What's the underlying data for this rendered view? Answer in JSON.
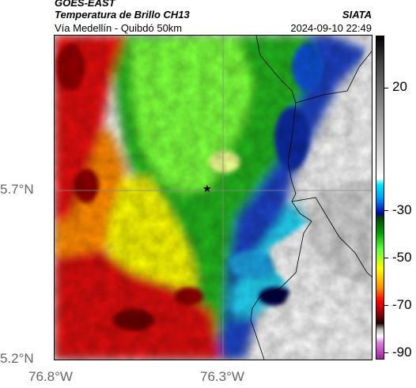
{
  "header": {
    "satellite": "GOES-EAST",
    "product": "Temperatura de Brillo CH13",
    "organization": "SIATA",
    "region": "Vía Medellín - Quibdó 50km",
    "datetime": "2024-09-10 22:49"
  },
  "map": {
    "lat_labels": [
      "5.7°N",
      "5.2°N"
    ],
    "lon_labels": [
      "76.8°W",
      "76.3°W"
    ],
    "marker": "★"
  },
  "colorbar": {
    "labels": [
      "20",
      "-30",
      "-50",
      "-70",
      "-90"
    ],
    "colors": [
      "#ffffff",
      "#888888",
      "#000000",
      "#00c8ff",
      "#0000aa",
      "#006400",
      "#00e000",
      "#ffff00",
      "#ff8c00",
      "#ff0000",
      "#800000",
      "#b040b0"
    ]
  }
}
